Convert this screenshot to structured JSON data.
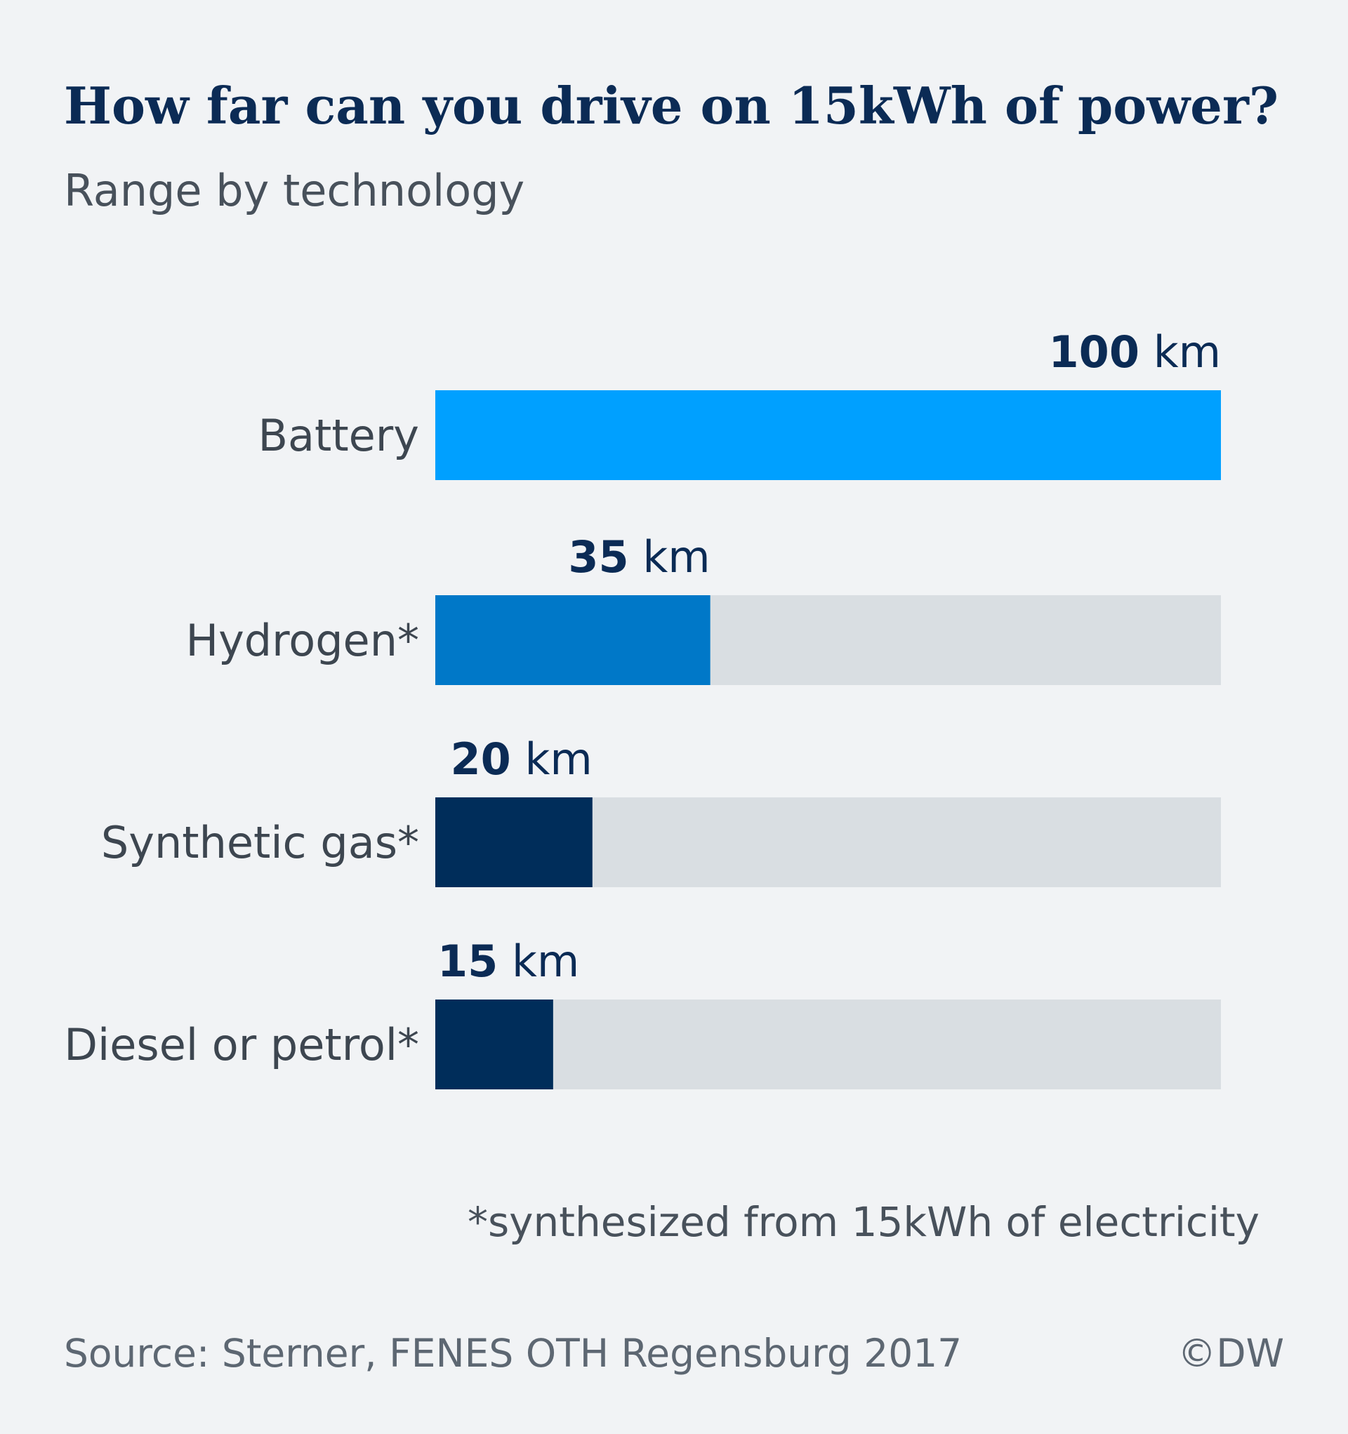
{
  "chart_data": {
    "type": "hbar",
    "title": "How far can you drive on 15kWh of power?",
    "subtitle": "Range by technology",
    "categories": [
      "Battery",
      "Hydrogen*",
      "Synthetic gas*",
      "Diesel or petrol*"
    ],
    "values": [
      100,
      35,
      20,
      15
    ],
    "unit": "km",
    "colors": [
      "#00a0ff",
      "#0078c8",
      "#002d5a",
      "#002d5a"
    ],
    "xlim": [
      0,
      100
    ],
    "footnote": "*synthesized from 15kWh of electricity",
    "source": "Source: Sterner, FENES OTH Regensburg 2017",
    "credit": "©DW"
  }
}
